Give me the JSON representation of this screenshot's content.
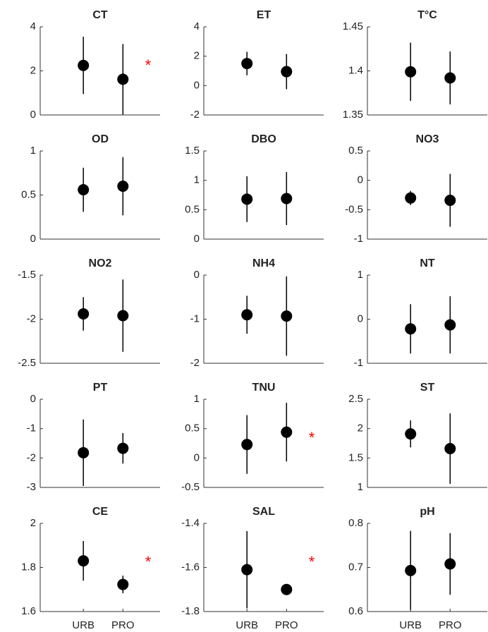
{
  "chart_data": [
    {
      "type": "errorbar",
      "title": "CT",
      "values": [
        2.25,
        1.62
      ],
      "errors": [
        1.3,
        1.6
      ],
      "ylim": [
        0,
        4
      ],
      "yticks": [
        0,
        2,
        4
      ],
      "annotation": "*",
      "color": "#000000",
      "annotation_color": "#ff0000"
    },
    {
      "type": "errorbar",
      "title": "ET",
      "values": [
        1.5,
        0.95
      ],
      "errors": [
        0.8,
        1.2
      ],
      "ylim": [
        -2,
        4
      ],
      "yticks": [
        -2,
        0,
        2,
        4
      ],
      "color": "#000000"
    },
    {
      "type": "errorbar",
      "title": "T°C",
      "values": [
        1.399,
        1.392
      ],
      "errors": [
        0.033,
        0.03
      ],
      "ylim": [
        1.35,
        1.45
      ],
      "yticks": [
        1.35,
        1.4,
        1.45
      ],
      "color": "#000000"
    },
    {
      "type": "errorbar",
      "title": "OD",
      "values": [
        0.56,
        0.6
      ],
      "errors": [
        0.25,
        0.33
      ],
      "ylim": [
        0,
        1
      ],
      "yticks": [
        0,
        0.5,
        1
      ],
      "color": "#000000"
    },
    {
      "type": "errorbar",
      "title": "DBO",
      "values": [
        0.68,
        0.69
      ],
      "errors": [
        0.39,
        0.45
      ],
      "ylim": [
        0,
        1.5
      ],
      "yticks": [
        0,
        0.5,
        1,
        1.5
      ],
      "color": "#000000"
    },
    {
      "type": "errorbar",
      "title": "NO3",
      "values": [
        -0.3,
        -0.34
      ],
      "errors": [
        0.12,
        0.45
      ],
      "ylim": [
        -1,
        0.5
      ],
      "yticks": [
        -1,
        -0.5,
        0,
        0.5
      ],
      "color": "#000000"
    },
    {
      "type": "errorbar",
      "title": "NO2",
      "values": [
        -1.94,
        -1.96
      ],
      "errors": [
        0.19,
        0.41
      ],
      "ylim": [
        -2.5,
        -1.5
      ],
      "yticks": [
        -2.5,
        -2,
        -1.5
      ],
      "color": "#000000"
    },
    {
      "type": "errorbar",
      "title": "NH4",
      "values": [
        -0.9,
        -0.93
      ],
      "errors": [
        0.43,
        0.9
      ],
      "ylim": [
        -2,
        0
      ],
      "yticks": [
        -2,
        -1,
        0
      ],
      "color": "#000000"
    },
    {
      "type": "errorbar",
      "title": "NT",
      "values": [
        -0.22,
        -0.13
      ],
      "errors": [
        0.56,
        0.65
      ],
      "ylim": [
        -1,
        1
      ],
      "yticks": [
        -1,
        0,
        1
      ],
      "color": "#000000"
    },
    {
      "type": "errorbar",
      "title": "PT",
      "values": [
        -1.82,
        -1.67
      ],
      "errors": [
        1.13,
        0.52
      ],
      "ylim": [
        -3,
        0
      ],
      "yticks": [
        -3,
        -2,
        -1,
        0
      ],
      "color": "#000000"
    },
    {
      "type": "errorbar",
      "title": "TNU",
      "values": [
        0.23,
        0.44
      ],
      "errors": [
        0.5,
        0.5
      ],
      "ylim": [
        -0.5,
        1
      ],
      "yticks": [
        -0.5,
        0,
        0.5,
        1
      ],
      "annotation": "*",
      "color": "#000000",
      "annotation_color": "#ff0000"
    },
    {
      "type": "errorbar",
      "title": "ST",
      "values": [
        1.91,
        1.66
      ],
      "errors": [
        0.23,
        0.6
      ],
      "ylim": [
        1,
        2.5
      ],
      "yticks": [
        1,
        1.5,
        2,
        2.5
      ],
      "color": "#000000"
    },
    {
      "type": "errorbar",
      "title": "CE",
      "categories": [
        "URB",
        "PRO"
      ],
      "values": [
        1.83,
        1.723
      ],
      "errors": [
        0.09,
        0.04
      ],
      "ylim": [
        1.6,
        2
      ],
      "yticks": [
        1.6,
        1.8,
        2
      ],
      "annotation": "*",
      "color": "#000000",
      "annotation_color": "#ff0000"
    },
    {
      "type": "errorbar",
      "title": "SAL",
      "categories": [
        "URB",
        "PRO"
      ],
      "values": [
        -1.61,
        -1.7
      ],
      "errors": [
        0.175,
        0.005
      ],
      "ylim": [
        -1.8,
        -1.4
      ],
      "yticks": [
        -1.8,
        -1.6,
        -1.4
      ],
      "annotation": "*",
      "color": "#000000",
      "annotation_color": "#ff0000"
    },
    {
      "type": "errorbar",
      "title": "pH",
      "categories": [
        "URB",
        "PRO"
      ],
      "values": [
        0.693,
        0.708
      ],
      "errors": [
        0.09,
        0.07
      ],
      "ylim": [
        0.6,
        0.8
      ],
      "yticks": [
        0.6,
        0.7,
        0.8
      ],
      "color": "#000000"
    }
  ]
}
